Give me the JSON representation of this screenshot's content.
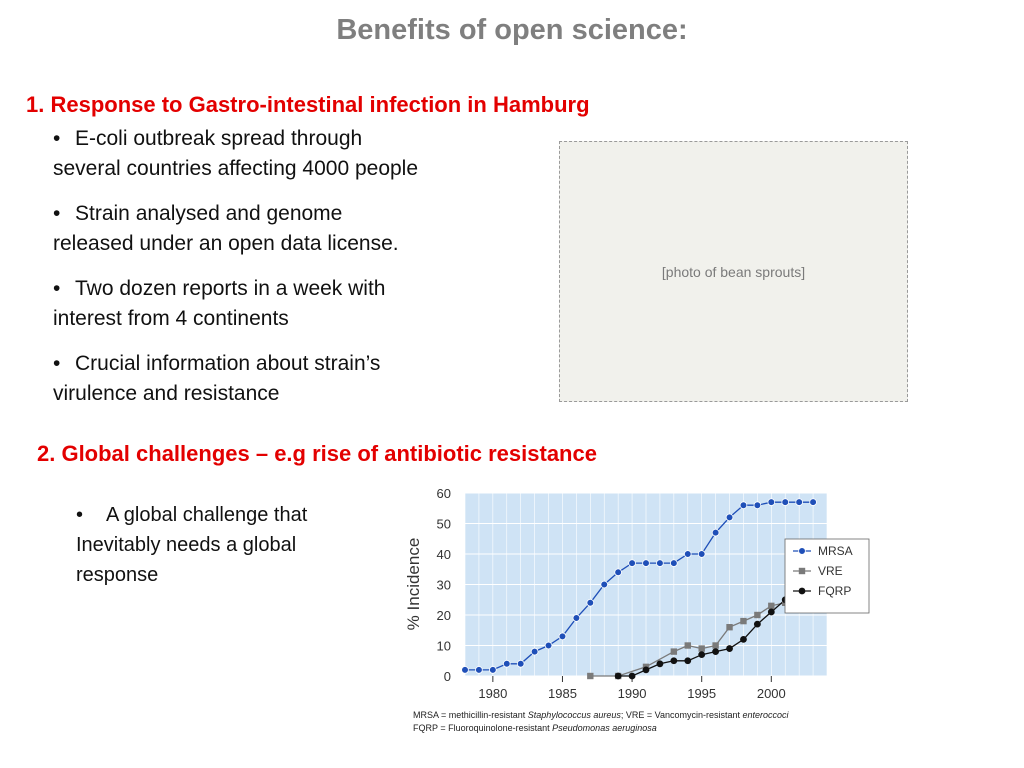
{
  "title": "Benefits of open science:",
  "section1": {
    "heading": "1. Response to Gastro-intestinal infection in Hamburg",
    "bullets": [
      {
        "line1": "E-coli outbreak spread through",
        "line2": "several countries affecting 4000 people"
      },
      {
        "line1": "Strain analysed and genome",
        "line2": "released under an open data license."
      },
      {
        "line1": "Two dozen reports in a week with",
        "line2": "interest from 4 continents"
      },
      {
        "line1": "Crucial information about strain’s",
        "line2": "virulence and resistance"
      }
    ],
    "bullet_glyph": "•"
  },
  "section2": {
    "heading": "2. Global challenges – e.g rise of antibiotic resistance",
    "bullet": {
      "line1": "A global challenge that",
      "line2": "Inevitably needs a global",
      "line3": "response"
    }
  },
  "colors": {
    "title": "#7f7f7f",
    "heading": "#e30000",
    "plot_bg": "#cfe3f5",
    "mrsa": "#1f4fb8",
    "vre": "#7a7a7a",
    "fqrp": "#111111"
  },
  "chart_data": {
    "type": "line",
    "ylabel": "% Incidence",
    "xlim": [
      1978,
      2004
    ],
    "ylim": [
      0,
      60
    ],
    "x_ticks": [
      1980,
      1985,
      1990,
      1995,
      2000
    ],
    "y_ticks": [
      0,
      10,
      20,
      30,
      40,
      50,
      60
    ],
    "grid": true,
    "legend_position": "right",
    "series": [
      {
        "name": "MRSA",
        "marker": "circle",
        "x": [
          1978,
          1979,
          1980,
          1981,
          1982,
          1983,
          1984,
          1985,
          1986,
          1987,
          1988,
          1989,
          1990,
          1991,
          1992,
          1993,
          1994,
          1995,
          1996,
          1997,
          1998,
          1999,
          2000,
          2001,
          2002,
          2003
        ],
        "y": [
          2,
          2,
          2,
          4,
          4,
          8,
          10,
          13,
          19,
          24,
          30,
          34,
          37,
          37,
          37,
          37,
          40,
          40,
          47,
          52,
          56,
          56,
          57,
          57,
          57,
          57
        ]
      },
      {
        "name": "VRE",
        "marker": "square",
        "x": [
          1987,
          1989,
          1991,
          1993,
          1994,
          1995,
          1996,
          1997,
          1998,
          1999,
          2000,
          2001,
          2002,
          2003
        ],
        "y": [
          0,
          0,
          3,
          8,
          10,
          9,
          10,
          16,
          18,
          20,
          23,
          24,
          24,
          25
        ]
      },
      {
        "name": "FQRP",
        "marker": "circle-filled",
        "x": [
          1989,
          1990,
          1991,
          1992,
          1993,
          1994,
          1995,
          1996,
          1997,
          1998,
          1999,
          2000,
          2001,
          2002,
          2003
        ],
        "y": [
          0,
          0,
          2,
          4,
          5,
          5,
          7,
          8,
          9,
          12,
          17,
          21,
          25,
          28,
          31
        ]
      }
    ],
    "caption_lines": [
      [
        {
          "text": "MRSA = methicillin-resistant ",
          "italic": false
        },
        {
          "text": "Staphylococcus aureus",
          "italic": true
        },
        {
          "text": "; VRE = Vancomycin-resistant ",
          "italic": false
        },
        {
          "text": "enteroccoci",
          "italic": true
        }
      ],
      [
        {
          "text": "FQRP = Fluoroquinolone-resistant ",
          "italic": false
        },
        {
          "text": "Pseudomonas aeruginosa",
          "italic": true
        }
      ]
    ]
  }
}
